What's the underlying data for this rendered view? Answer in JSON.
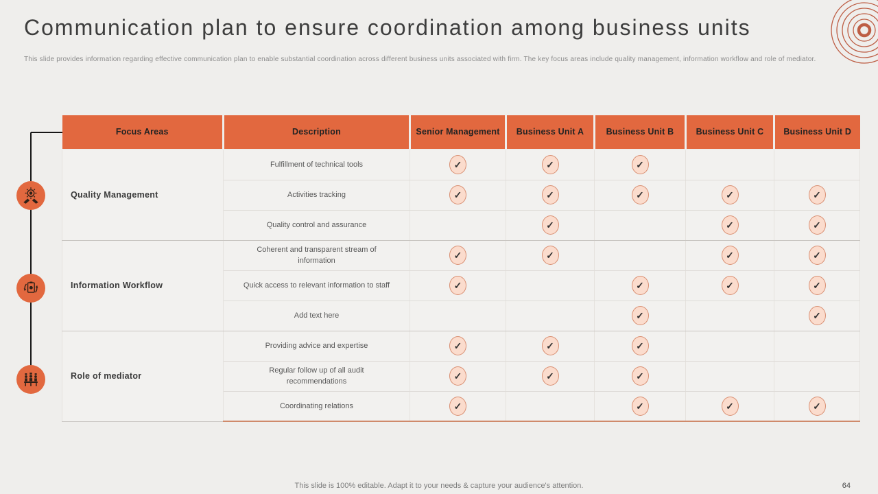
{
  "slide": {
    "title": "Communication plan to ensure coordination among business units",
    "subtitle": "This slide provides information regarding effective communication plan to enable substantial coordination across different business units associated with firm. The key focus areas include quality management,  information workflow and role of mediator.",
    "footer": "This slide is 100% editable. Adapt it to your needs & capture your audience's attention.",
    "page_number": "64"
  },
  "colors": {
    "accent": "#e2683f",
    "check_fill": "#fbdccd",
    "check_border": "#d98f72",
    "header_text": "#232323"
  },
  "table": {
    "headers": [
      "Focus Areas",
      "Description",
      "Senior Management",
      "Business Unit A",
      "Business Unit B",
      "Business Unit C",
      "Business Unit D"
    ],
    "check_symbol": "✓",
    "groups": [
      {
        "focus_area": "Quality Management",
        "icon": "quality-management-icon",
        "rows": [
          {
            "description": "Fulfillment of technical tools",
            "checks": [
              true,
              true,
              true,
              false,
              false
            ]
          },
          {
            "description": "Activities tracking",
            "checks": [
              true,
              true,
              true,
              true,
              true
            ]
          },
          {
            "description": "Quality control and assurance",
            "checks": [
              false,
              true,
              false,
              true,
              true
            ]
          }
        ]
      },
      {
        "focus_area": "Information Workflow",
        "icon": "information-workflow-icon",
        "rows": [
          {
            "description": "Coherent and transparent stream of information",
            "checks": [
              true,
              true,
              false,
              true,
              true
            ]
          },
          {
            "description": "Quick access to relevant information to staff",
            "checks": [
              true,
              false,
              true,
              true,
              true
            ]
          },
          {
            "description": "Add text here",
            "checks": [
              false,
              false,
              true,
              false,
              true
            ]
          }
        ]
      },
      {
        "focus_area": "Role of mediator",
        "icon": "mediator-icon",
        "rows": [
          {
            "description": "Providing advice and expertise",
            "checks": [
              true,
              true,
              true,
              false,
              false
            ]
          },
          {
            "description": "Regular follow up of all audit recommendations",
            "checks": [
              true,
              true,
              true,
              false,
              false
            ]
          },
          {
            "description": "Coordinating relations",
            "checks": [
              true,
              false,
              true,
              true,
              true
            ]
          }
        ]
      }
    ]
  }
}
